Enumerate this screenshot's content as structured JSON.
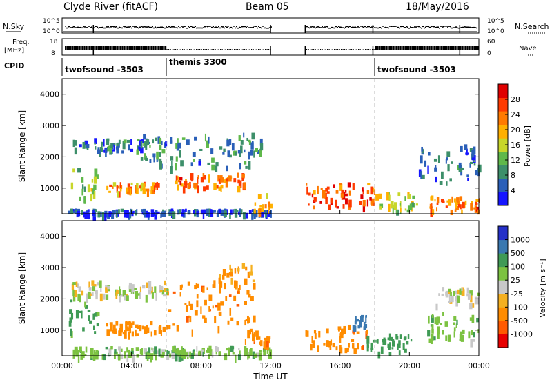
{
  "header": {
    "station": "Clyde River (fitACF)",
    "beam": "Beam 05",
    "date": "18/May/2016"
  },
  "time_axis": {
    "label": "Time UT",
    "ticks": [
      "00:00",
      "04:00",
      "08:00",
      "12:00",
      "16:00",
      "20:00",
      "00:00"
    ],
    "range_hours": [
      0,
      24
    ]
  },
  "status_panels": {
    "nsky": {
      "label": "N.Sky",
      "left_ticks": [
        "10^5",
        "10^0"
      ],
      "right_label": "N.Search",
      "right_ticks": [
        "10^5",
        "10^0"
      ]
    },
    "freq": {
      "label_line1": "Freq.",
      "label_line2": "[MHz]",
      "left_ticks": [
        "18",
        "8"
      ],
      "right_label": "Nave",
      "right_ticks": [
        "60",
        "0"
      ]
    },
    "cpid": {
      "label": "CPID",
      "segments": [
        {
          "name": "twofsound -3503",
          "start_h": 0,
          "end_h": 6
        },
        {
          "name": "themis 3300",
          "start_h": 6,
          "end_h": 18
        },
        {
          "name": "twofsound -3503",
          "start_h": 18,
          "end_h": 24
        }
      ]
    },
    "data_gaps_h": [
      [
        12,
        14
      ]
    ]
  },
  "power_panel": {
    "ylabel": "Slant Range [km]",
    "yticks": [
      "1000",
      "2000",
      "3000",
      "4000"
    ],
    "ylim_km": [
      180,
      4500
    ],
    "colorbar": {
      "label": "Power [dB]",
      "ticks": [
        "4",
        "8",
        "12",
        "16",
        "20",
        "24",
        "28"
      ],
      "colors": [
        "#1515ff",
        "#2a5fb8",
        "#3d8f6a",
        "#5fb84a",
        "#c8d62a",
        "#ffb000",
        "#ff7a00",
        "#ff3a00",
        "#e00000"
      ]
    }
  },
  "velocity_panel": {
    "ylabel": "Slant Range [km]",
    "yticks": [
      "1000",
      "2000",
      "3000",
      "4000"
    ],
    "ylim_km": [
      180,
      4500
    ],
    "colorbar": {
      "label": "Velocity [m s⁻¹]",
      "ticks": [
        "1000",
        "500",
        "100",
        "25",
        "-25",
        "-100",
        "-500",
        "-1000"
      ],
      "colors": [
        "#2530c8",
        "#3a78b0",
        "#3f9a55",
        "#7cc241",
        "#c8c8c8",
        "#f5b020",
        "#ff8c00",
        "#ff5a00",
        "#e80000"
      ]
    }
  },
  "chart_data": {
    "type": "heatmap",
    "x_unit": "hours UT",
    "y_unit": "km slant range",
    "xlim": [
      0,
      24
    ],
    "ylim": [
      180,
      4500
    ],
    "power_regions_dB": [
      {
        "t0": 0.3,
        "t1": 12.0,
        "r0": 200,
        "r1": 350,
        "value": 6
      },
      {
        "t0": 0.5,
        "t1": 2.0,
        "r0": 700,
        "r1": 1800,
        "value": 14
      },
      {
        "t0": 2.5,
        "t1": 5.5,
        "r0": 900,
        "r1": 1200,
        "value": 22
      },
      {
        "t0": 6.5,
        "t1": 10.5,
        "r0": 1000,
        "r1": 1500,
        "value": 24
      },
      {
        "t0": 4.5,
        "t1": 11.5,
        "r0": 1700,
        "r1": 2800,
        "value": 10
      },
      {
        "t0": 0.5,
        "t1": 5.0,
        "r0": 2200,
        "r1": 2600,
        "value": 8
      },
      {
        "t0": 11.0,
        "t1": 12.0,
        "r0": 300,
        "r1": 900,
        "value": 22
      },
      {
        "t0": 14.0,
        "t1": 18.0,
        "r0": 400,
        "r1": 1200,
        "value": 26
      },
      {
        "t0": 18.0,
        "t1": 20.5,
        "r0": 300,
        "r1": 900,
        "value": 16
      },
      {
        "t0": 21.0,
        "t1": 24.0,
        "r0": 300,
        "r1": 800,
        "value": 24
      },
      {
        "t0": 20.5,
        "t1": 24.0,
        "r0": 1200,
        "r1": 2400,
        "value": 8
      }
    ],
    "velocity_regions_mps": [
      {
        "t0": 0.3,
        "t1": 2.0,
        "r0": 900,
        "r1": 2000,
        "value": 150
      },
      {
        "t0": 2.5,
        "t1": 6.0,
        "r0": 900,
        "r1": 1300,
        "value": -400
      },
      {
        "t0": 6.0,
        "t1": 11.0,
        "r0": 1000,
        "r1": 2600,
        "value": -450
      },
      {
        "t0": 0.5,
        "t1": 6.0,
        "r0": 2100,
        "r1": 2600,
        "value": 0
      },
      {
        "t0": 9.0,
        "t1": 11.0,
        "r0": 2400,
        "r1": 3200,
        "value": -100
      },
      {
        "t0": 0.3,
        "t1": 12.0,
        "r0": 200,
        "r1": 500,
        "value": 60
      },
      {
        "t0": 10.5,
        "t1": 12.0,
        "r0": 600,
        "r1": 1000,
        "value": -450
      },
      {
        "t0": 14.0,
        "t1": 17.5,
        "r0": 400,
        "r1": 1200,
        "value": -450
      },
      {
        "t0": 16.5,
        "t1": 17.5,
        "r0": 1000,
        "r1": 1500,
        "value": 700
      },
      {
        "t0": 17.5,
        "t1": 20.5,
        "r0": 300,
        "r1": 900,
        "value": 250
      },
      {
        "t0": 21.0,
        "t1": 24.0,
        "r0": 700,
        "r1": 1600,
        "value": 80
      },
      {
        "t0": 21.5,
        "t1": 24.0,
        "r0": 1800,
        "r1": 2400,
        "value": 0
      }
    ]
  }
}
